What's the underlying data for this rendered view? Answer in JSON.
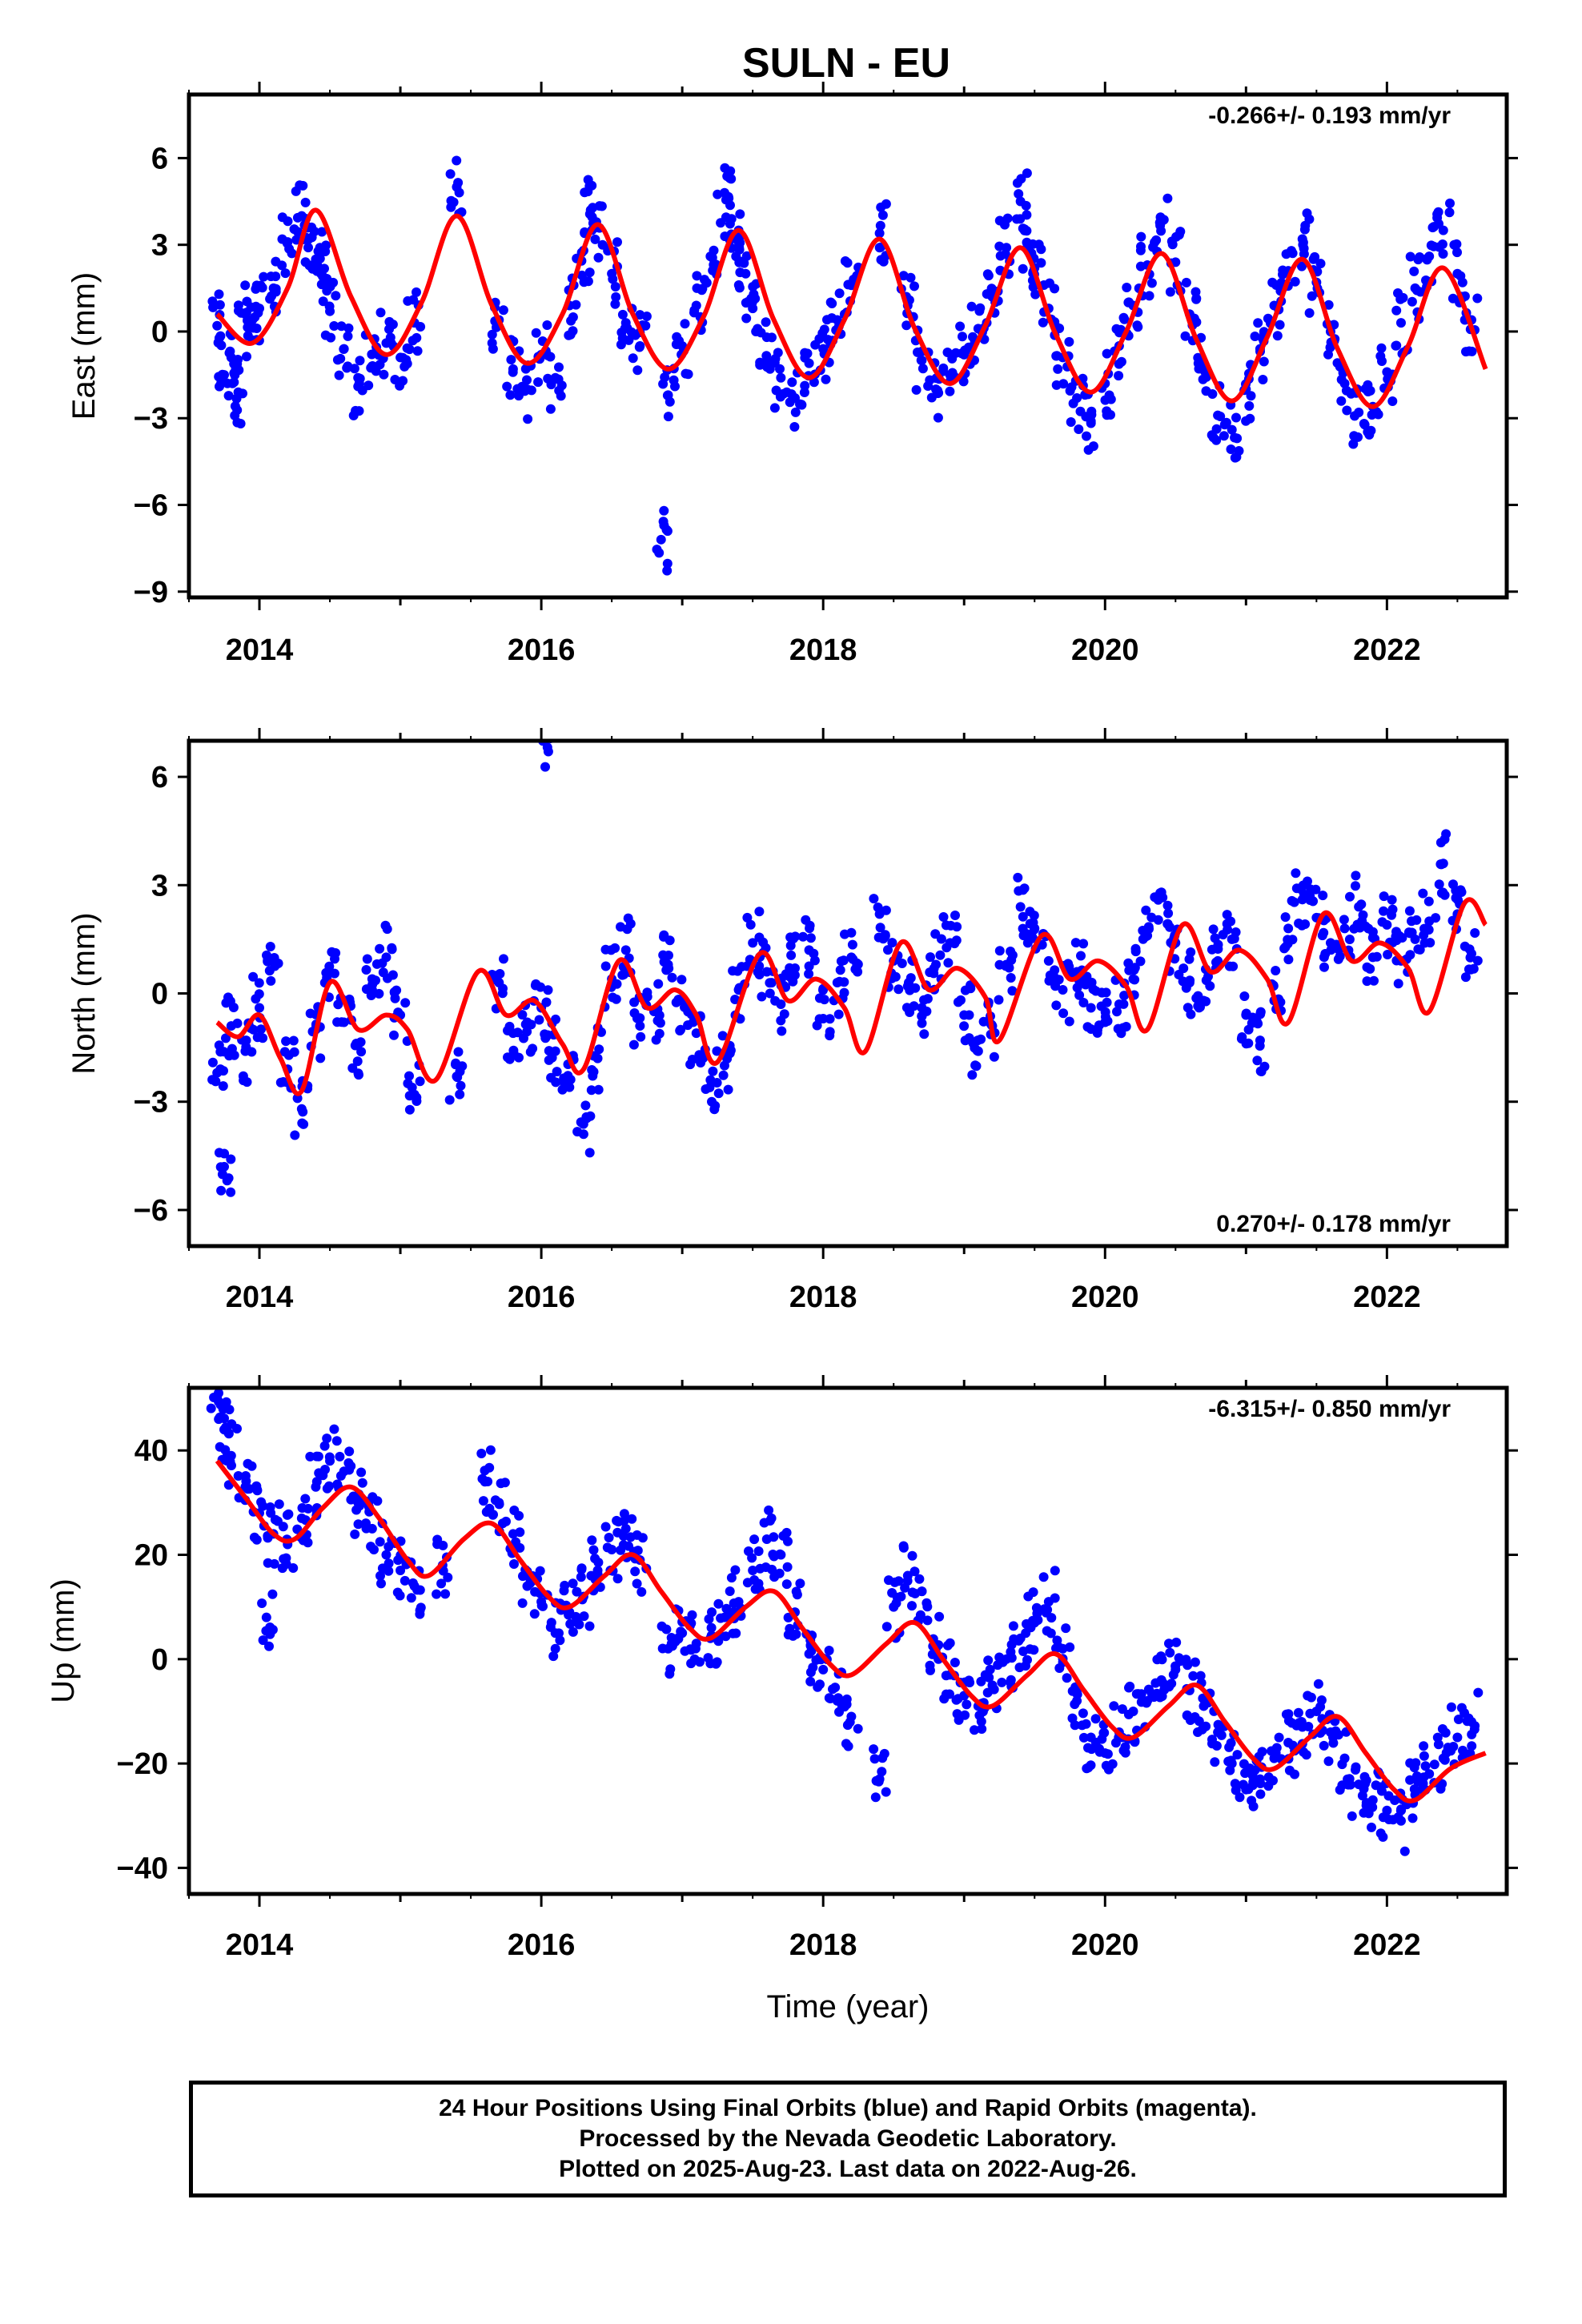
{
  "title": "SULN - EU",
  "footer": {
    "line1": "24 Hour Positions Using Final Orbits (blue) and Rapid Orbits (magenta).",
    "line2": "Processed by the Nevada Geodetic Laboratory.",
    "line3": "Plotted on 2025-Aug-23. Last data on 2022-Aug-26."
  },
  "colors": {
    "observations": "#0000ff",
    "model": "#ff0000",
    "axes": "#000000"
  },
  "chart_data": [
    {
      "type": "scatter",
      "component": "east",
      "ylabel": "East (mm)",
      "xlabel": "",
      "xlim": [
        2013.5,
        2022.85
      ],
      "ylim": [
        -9.2,
        8.2
      ],
      "xticks": [
        2014,
        2016,
        2018,
        2020,
        2022
      ],
      "yticks": [
        -9,
        -6,
        -3,
        0,
        3,
        6
      ],
      "rate_text": "-0.266+/- 0.193 mm/yr",
      "rate_position": "top-right",
      "grid": false,
      "series": [
        {
          "kind": "observations",
          "x": [
            2013.7,
            2013.75,
            2013.8,
            2013.85,
            2013.9,
            2013.95,
            2014.0,
            2014.1,
            2014.2,
            2014.3,
            2014.35,
            2014.4,
            2014.45,
            2014.5,
            2014.6,
            2014.7,
            2014.8,
            2014.9,
            2015.0,
            2015.1,
            2015.4,
            2015.7,
            2015.8,
            2015.9,
            2016.0,
            2016.1,
            2016.2,
            2016.3,
            2016.35,
            2016.4,
            2016.5,
            2016.6,
            2016.7,
            2016.85,
            2016.9,
            2017.0,
            2017.1,
            2017.2,
            2017.3,
            2017.35,
            2017.4,
            2017.45,
            2017.5,
            2017.6,
            2017.7,
            2017.8,
            2017.9,
            2018.0,
            2018.1,
            2018.2,
            2018.4,
            2018.6,
            2018.7,
            2018.8,
            2018.9,
            2019.0,
            2019.1,
            2019.2,
            2019.3,
            2019.4,
            2019.45,
            2019.5,
            2019.6,
            2019.7,
            2019.8,
            2019.9,
            2020.0,
            2020.1,
            2020.2,
            2020.3,
            2020.4,
            2020.5,
            2020.6,
            2020.7,
            2020.8,
            2020.9,
            2021.0,
            2021.1,
            2021.2,
            2021.3,
            2021.4,
            2021.5,
            2021.6,
            2021.7,
            2021.8,
            2021.9,
            2022.0,
            2022.1,
            2022.2,
            2022.3,
            2022.4,
            2022.5,
            2022.6
          ],
          "y": [
            0.2,
            -1.5,
            -0.9,
            -2.1,
            0.6,
            -0.3,
            0.8,
            1.5,
            3.1,
            4.0,
            3.2,
            2.5,
            1.9,
            0.7,
            -0.6,
            -1.9,
            -1.2,
            -0.4,
            -0.9,
            0.3,
            5.0,
            0.4,
            -1.3,
            -2.0,
            -0.8,
            -1.6,
            0.9,
            2.8,
            4.2,
            3.6,
            2.0,
            0.3,
            -0.5,
            -7.2,
            -2.2,
            -0.5,
            0.9,
            2.6,
            4.8,
            3.9,
            3.1,
            2.0,
            0.8,
            -0.2,
            -1.6,
            -2.3,
            -1.1,
            -0.6,
            0.4,
            1.6,
            3.4,
            0.9,
            -1.0,
            -2.0,
            -1.5,
            -0.8,
            0.1,
            1.2,
            2.9,
            4.5,
            3.0,
            2.2,
            0.8,
            -0.9,
            -2.3,
            -3.1,
            -1.8,
            -0.5,
            0.9,
            2.3,
            3.8,
            2.4,
            0.6,
            -1.2,
            -2.9,
            -3.4,
            -2.0,
            -0.6,
            0.9,
            2.1,
            3.2,
            1.7,
            0.0,
            -1.8,
            -2.8,
            -2.6,
            -1.4,
            0.3,
            1.5,
            2.6,
            3.5,
            2.0,
            0.4
          ]
        },
        {
          "kind": "model",
          "x": [
            2013.7,
            2013.95,
            2014.2,
            2014.4,
            2014.65,
            2014.9,
            2015.15,
            2015.4,
            2015.65,
            2015.9,
            2016.15,
            2016.4,
            2016.65,
            2016.9,
            2017.15,
            2017.4,
            2017.65,
            2017.9,
            2018.15,
            2018.4,
            2018.65,
            2018.9,
            2019.15,
            2019.4,
            2019.65,
            2019.9,
            2020.15,
            2020.4,
            2020.65,
            2020.9,
            2021.15,
            2021.4,
            2021.65,
            2021.9,
            2022.15,
            2022.4,
            2022.7
          ],
          "y": [
            0.6,
            -0.4,
            1.5,
            4.2,
            1.2,
            -0.8,
            1.0,
            4.0,
            0.9,
            -1.1,
            0.6,
            3.7,
            0.6,
            -1.3,
            0.5,
            3.5,
            0.4,
            -1.6,
            0.4,
            3.2,
            0.1,
            -1.8,
            0.2,
            2.9,
            -0.1,
            -2.1,
            0.0,
            2.7,
            -0.3,
            -2.4,
            -0.2,
            2.5,
            -0.6,
            -2.6,
            -0.5,
            2.2,
            -1.3
          ]
        }
      ]
    },
    {
      "type": "scatter",
      "component": "north",
      "ylabel": "North (mm)",
      "xlabel": "",
      "xlim": [
        2013.5,
        2022.85
      ],
      "ylim": [
        -7.0,
        7.0
      ],
      "xticks": [
        2014,
        2016,
        2018,
        2020,
        2022
      ],
      "yticks": [
        -6,
        -3,
        0,
        3,
        6
      ],
      "rate_text": "0.270+/- 0.178 mm/yr",
      "rate_position": "bottom-right",
      "grid": false,
      "series": [
        {
          "kind": "observations",
          "x": [
            2013.7,
            2013.75,
            2013.8,
            2013.9,
            2014.0,
            2014.1,
            2014.2,
            2014.3,
            2014.4,
            2014.5,
            2014.6,
            2014.7,
            2014.8,
            2014.9,
            2015.0,
            2015.1,
            2015.4,
            2015.7,
            2015.8,
            2015.9,
            2016.0,
            2016.05,
            2016.1,
            2016.2,
            2016.3,
            2016.4,
            2016.5,
            2016.6,
            2016.7,
            2016.8,
            2016.9,
            2017.0,
            2017.1,
            2017.2,
            2017.3,
            2017.4,
            2017.5,
            2017.6,
            2017.7,
            2017.8,
            2017.9,
            2018.0,
            2018.1,
            2018.2,
            2018.4,
            2018.5,
            2018.6,
            2018.7,
            2018.8,
            2018.9,
            2019.0,
            2019.1,
            2019.2,
            2019.3,
            2019.4,
            2019.5,
            2019.6,
            2019.7,
            2019.8,
            2019.9,
            2020.0,
            2020.1,
            2020.2,
            2020.3,
            2020.4,
            2020.5,
            2020.6,
            2020.7,
            2020.8,
            2020.9,
            2021.0,
            2021.1,
            2021.2,
            2021.3,
            2021.4,
            2021.5,
            2021.6,
            2021.7,
            2021.8,
            2021.9,
            2022.0,
            2022.1,
            2022.2,
            2022.3,
            2022.4,
            2022.5,
            2022.6
          ],
          "y": [
            -2.2,
            -4.8,
            -0.9,
            -1.6,
            -0.4,
            0.9,
            -2.1,
            -3.2,
            -1.0,
            0.6,
            -0.8,
            -1.4,
            0.4,
            1.0,
            -0.6,
            -2.8,
            -2.3,
            0.3,
            -1.1,
            -0.8,
            -0.4,
            6.7,
            -1.6,
            -2.6,
            -3.9,
            -1.8,
            0.4,
            1.2,
            -0.9,
            -0.5,
            0.8,
            -0.2,
            -1.1,
            -2.4,
            -2.0,
            0.1,
            1.4,
            0.6,
            -0.3,
            0.7,
            1.2,
            -0.7,
            0.3,
            1.0,
            2.2,
            0.9,
            0.2,
            -0.4,
            0.8,
            1.4,
            -0.6,
            -1.6,
            -0.9,
            0.8,
            2.4,
            1.8,
            0.9,
            0.1,
            0.6,
            -0.4,
            -0.8,
            -0.3,
            0.4,
            1.6,
            2.8,
            1.4,
            0.3,
            -0.2,
            0.9,
            1.5,
            -0.6,
            -1.3,
            -0.2,
            1.8,
            2.6,
            2.1,
            1.4,
            1.8,
            2.4,
            1.0,
            1.9,
            0.9,
            1.5,
            2.0,
            3.6,
            2.2,
            1.1
          ]
        },
        {
          "kind": "model",
          "x": [
            2013.7,
            2013.85,
            2014.0,
            2014.15,
            2014.3,
            2014.5,
            2014.7,
            2014.9,
            2015.05,
            2015.25,
            2015.55,
            2015.75,
            2015.95,
            2016.15,
            2016.3,
            2016.55,
            2016.75,
            2016.95,
            2017.1,
            2017.25,
            2017.55,
            2017.75,
            2017.95,
            2018.15,
            2018.3,
            2018.55,
            2018.75,
            2018.95,
            2019.15,
            2019.25,
            2019.55,
            2019.75,
            2019.95,
            2020.15,
            2020.3,
            2020.55,
            2020.75,
            2020.95,
            2021.15,
            2021.3,
            2021.55,
            2021.75,
            2021.95,
            2022.15,
            2022.3,
            2022.55,
            2022.7
          ],
          "y": [
            -0.8,
            -1.2,
            -0.6,
            -1.8,
            -2.7,
            0.3,
            -1.0,
            -0.6,
            -1.0,
            -2.4,
            0.6,
            -0.6,
            -0.2,
            -1.4,
            -2.1,
            0.9,
            -0.4,
            0.1,
            -0.6,
            -1.9,
            1.1,
            -0.2,
            0.4,
            -0.4,
            -1.6,
            1.4,
            0.1,
            0.7,
            -0.1,
            -1.3,
            1.6,
            0.4,
            0.9,
            0.2,
            -1.0,
            1.9,
            0.6,
            1.2,
            0.4,
            -0.8,
            2.2,
            0.9,
            1.4,
            0.7,
            -0.5,
            2.5,
            1.9
          ]
        }
      ]
    },
    {
      "type": "scatter",
      "component": "up",
      "ylabel": "Up (mm)",
      "xlabel": "Time (year)",
      "xlim": [
        2013.5,
        2022.85
      ],
      "ylim": [
        -45,
        52
      ],
      "xticks": [
        2014,
        2016,
        2018,
        2020,
        2022
      ],
      "yticks": [
        -40,
        -20,
        0,
        20,
        40
      ],
      "rate_text": "-6.315+/- 0.850 mm/yr",
      "rate_position": "top-right",
      "grid": false,
      "series": [
        {
          "kind": "observations",
          "x": [
            2013.7,
            2013.75,
            2013.8,
            2013.9,
            2014.0,
            2014.05,
            2014.1,
            2014.2,
            2014.3,
            2014.4,
            2014.5,
            2014.6,
            2014.7,
            2014.8,
            2014.9,
            2015.0,
            2015.1,
            2015.3,
            2015.6,
            2015.7,
            2015.8,
            2015.9,
            2016.0,
            2016.1,
            2016.2,
            2016.3,
            2016.4,
            2016.5,
            2016.6,
            2016.7,
            2016.9,
            2017.0,
            2017.1,
            2017.2,
            2017.3,
            2017.4,
            2017.5,
            2017.6,
            2017.7,
            2017.8,
            2017.9,
            2018.0,
            2018.1,
            2018.2,
            2018.4,
            2018.5,
            2018.6,
            2018.7,
            2018.8,
            2018.9,
            2019.0,
            2019.1,
            2019.2,
            2019.3,
            2019.4,
            2019.5,
            2019.6,
            2019.7,
            2019.8,
            2019.9,
            2020.0,
            2020.1,
            2020.2,
            2020.3,
            2020.4,
            2020.5,
            2020.6,
            2020.7,
            2020.8,
            2020.9,
            2021.0,
            2021.1,
            2021.2,
            2021.3,
            2021.4,
            2021.5,
            2021.6,
            2021.7,
            2021.8,
            2021.9,
            2022.0,
            2022.1,
            2022.2,
            2022.3,
            2022.4,
            2022.5,
            2022.6
          ],
          "y": [
            50,
            44,
            39,
            33,
            28,
            8,
            24,
            22,
            27,
            33,
            38,
            36,
            30,
            25,
            20,
            17,
            14,
            18,
            34,
            30,
            24,
            14,
            11,
            5,
            9,
            12,
            17,
            21,
            25,
            19,
            2,
            5,
            3,
            4,
            8,
            11,
            17,
            23,
            20,
            9,
            1,
            -2,
            -8,
            -11,
            -23,
            10,
            16,
            13,
            2,
            -3,
            -7,
            -9,
            -5,
            0,
            4,
            7,
            11,
            2,
            -8,
            -15,
            -18,
            -14,
            -10,
            -8,
            -4,
            -2,
            -6,
            -9,
            -14,
            -20,
            -25,
            -23,
            -19,
            -16,
            -13,
            -10,
            -14,
            -19,
            -24,
            -27,
            -29,
            -31,
            -26,
            -22,
            -19,
            -15,
            -12
          ]
        },
        {
          "kind": "model",
          "x": [
            2013.7,
            2013.9,
            2014.1,
            2014.25,
            2014.45,
            2014.65,
            2014.85,
            2015.05,
            2015.2,
            2015.45,
            2015.65,
            2015.85,
            2016.05,
            2016.2,
            2016.45,
            2016.65,
            2016.85,
            2017.05,
            2017.2,
            2017.45,
            2017.65,
            2017.85,
            2018.05,
            2018.2,
            2018.45,
            2018.65,
            2018.85,
            2019.05,
            2019.2,
            2019.45,
            2019.65,
            2019.85,
            2020.05,
            2020.2,
            2020.45,
            2020.65,
            2020.85,
            2021.05,
            2021.2,
            2021.45,
            2021.65,
            2021.85,
            2022.05,
            2022.2,
            2022.45,
            2022.7
          ],
          "y": [
            38,
            31,
            24,
            23,
            29,
            33,
            27,
            19,
            16,
            23,
            26,
            19,
            12,
            10,
            16,
            20,
            13,
            6,
            4,
            10,
            13,
            6,
            -1,
            -3,
            3,
            7,
            0,
            -7,
            -9,
            -3,
            1,
            -6,
            -13,
            -15,
            -9,
            -5,
            -12,
            -19,
            -21,
            -15,
            -11,
            -18,
            -25,
            -27,
            -21,
            -18
          ]
        }
      ]
    }
  ]
}
